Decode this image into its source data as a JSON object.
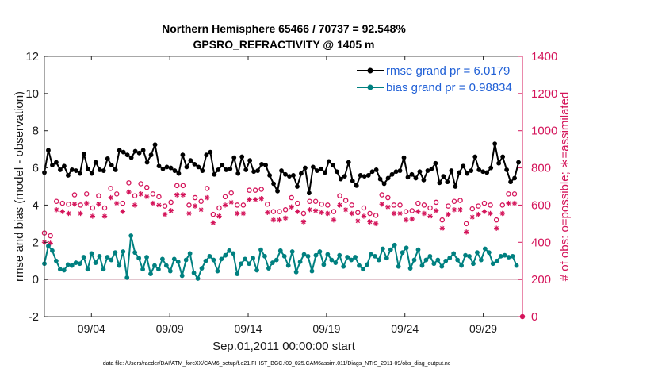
{
  "chart_data": {
    "type": "line",
    "title_line1": "Northern Hemisphere 65466 / 70737 = 92.548%",
    "title_line2": "GPSRO_REFRACTIVITY @ 1405 m",
    "ylabel_left": "rmse and bias (model - observation)",
    "ylabel_right": "# of obs: o=possible; ∗=assimilated",
    "xlabel": "Sep.01,2011 00:00:00 start",
    "footer": "data file: /Users/raeder/DAI/ATM_forcXX/CAM6_setup/f.e21.FHIST_BGC.f09_025.CAM6assim.011/Diags_NTrS_2011-09/obs_diag_output.nc",
    "x_range": [
      1.0,
      31.5
    ],
    "ylim_left": [
      -2,
      12
    ],
    "ylim_right": [
      0,
      1400
    ],
    "yticks_left": [
      "-2",
      "0",
      "2",
      "4",
      "6",
      "8",
      "10",
      "12"
    ],
    "yticks_right": [
      "0",
      "200",
      "400",
      "600",
      "800",
      "1000",
      "1200",
      "1400"
    ],
    "xticks": [
      {
        "day": 4,
        "label": "09/04"
      },
      {
        "day": 9,
        "label": "09/09"
      },
      {
        "day": 14,
        "label": "09/14"
      },
      {
        "day": 19,
        "label": "09/19"
      },
      {
        "day": 24,
        "label": "09/24"
      },
      {
        "day": 29,
        "label": "09/29"
      }
    ],
    "legend": [
      {
        "name": "rmse grand pr = 6.0179",
        "color": "#000000"
      },
      {
        "name": "bias grand pr = 0.98834",
        "color": "#008080"
      }
    ],
    "series": [
      {
        "name": "rmse",
        "axis": "left",
        "color": "#000000",
        "values": [
          5.75,
          7.1,
          6.95,
          6.5,
          6.15,
          6.7,
          6.3,
          5.8,
          5.9,
          5.85,
          6.1,
          6.25,
          5.6,
          6.05,
          5.9,
          6.3,
          5.85,
          5.75,
          5.7,
          6.1,
          6.75,
          6.0,
          5.95,
          5.85,
          5.7,
          6.1,
          6.3,
          5.75,
          5.9,
          5.8,
          5.85,
          5.7,
          6.5,
          6.05,
          6.15,
          6.25,
          5.9,
          6.4,
          6.95,
          6.1,
          6.85,
          7.0,
          6.7,
          6.95,
          6.55,
          6.4,
          6.9,
          6.5,
          6.8,
          6.2,
          6.95,
          6.75,
          6.3,
          6.85,
          6.7,
          7.4,
          7.25,
          6.05,
          6.1,
          6.55,
          5.95,
          5.4,
          6.05,
          5.95,
          6.0,
          6.1,
          5.85,
          5.9,
          5.7,
          6.2,
          6.7,
          5.8,
          6.05,
          6.15,
          6.4,
          5.6,
          6.2,
          6.55,
          6.05,
          6.6,
          5.85,
          5.5,
          6.7,
          6.4,
          6.85,
          6.2,
          5.65,
          6.05,
          5.9,
          6.3,
          6.15,
          5.8,
          5.9,
          6.4,
          5.95,
          5.75,
          6.55,
          6.15,
          5.7,
          5.85,
          6.6,
          6.1,
          5.9,
          6.2,
          6.4,
          5.95,
          5.8,
          6.3,
          5.85,
          5.7,
          6.2,
          6.5,
          6.15,
          6.2,
          5.6,
          5.3,
          5.15,
          5.55,
          4.75,
          5.6,
          5.85,
          4.5,
          5.65,
          6.0,
          5.55,
          5.85,
          5.6,
          5.45,
          5.0,
          5.8,
          5.7,
          5.95,
          6.0,
          5.6,
          4.65,
          5.8,
          6.05,
          6.1,
          5.85,
          5.7,
          5.95,
          5.5,
          5.75,
          6.2,
          6.35,
          5.75,
          6.15,
          6.05,
          5.8,
          5.7,
          5.4,
          5.75,
          5.55,
          6.05,
          6.3,
          5.85,
          5.3,
          5.4,
          5.05,
          5.8,
          5.6,
          5.75,
          5.55,
          5.25,
          5.6,
          5.5,
          5.8,
          5.55,
          5.9,
          6.1,
          5.4,
          5.6,
          5.15,
          5.8,
          5.45,
          5.8,
          5.65,
          6.1,
          5.8,
          6.05,
          5.85,
          6.25,
          6.55,
          6.05,
          5.5,
          6.05,
          5.65,
          5.15,
          5.45,
          5.75,
          5.8,
          5.95,
          5.35,
          5.3,
          5.85,
          6.2,
          5.95,
          5.7,
          6.25,
          5.6,
          5.2,
          5.85,
          5.55,
          5.4,
          5.25,
          5.55,
          5.85,
          5.2,
          5.0,
          5.6,
          5.75,
          5.4,
          6.1,
          5.35,
          5.7,
          5.95,
          5.85,
          5.6,
          6.6,
          6.0,
          5.9,
          5.3,
          5.8,
          5.55,
          5.75,
          6.2,
          6.0,
          5.8,
          7.3,
          6.05,
          6.25,
          6.35,
          6.6,
          5.75,
          5.9,
          5.1,
          5.25,
          5.6,
          5.45,
          5.6,
          6.3
        ]
      },
      {
        "name": "bias",
        "axis": "left",
        "color": "#008080",
        "values": [
          0.85,
          2.4,
          1.8,
          0.8,
          1.55,
          0.6,
          1.0,
          0.95,
          0.55,
          1.35,
          0.5,
          0.4,
          0.8,
          1.2,
          0.75,
          0.45,
          0.9,
          1.15,
          0.85,
          0.35,
          1.2,
          0.85,
          0.55,
          0.95,
          1.4,
          0.75,
          0.9,
          0.3,
          1.25,
          1.0,
          0.55,
          0.85,
          1.2,
          1.55,
          1.05,
          0.7,
          1.45,
          1.35,
          0.75,
          1.2,
          1.5,
          0.8,
          0.1,
          0.95,
          2.35,
          1.4,
          1.45,
          0.6,
          1.15,
          1.5,
          0.55,
          1.7,
          1.2,
          0.75,
          0.3,
          1.25,
          0.75,
          1.45,
          0.55,
          0.85,
          1.1,
          1.6,
          0.75,
          0.05,
          0.45,
          0.9,
          1.1,
          0.4,
          0.95,
          1.35,
          0.2,
          -0.1,
          1.05,
          0.6,
          1.4,
          0.95,
          0.35,
          0.8,
          0.05,
          1.15,
          0.6,
          1.55,
          1.0,
          0.75,
          1.25,
          0.35,
          1.05,
          1.55,
          0.45,
          0.95,
          1.1,
          0.35,
          1.3,
          0.75,
          1.55,
          0.85,
          1.4,
          0.9,
          0.3,
          1.05,
          0.85,
          0.45,
          1.1,
          0.8,
          0.85,
          0.95,
          1.15,
          0.65,
          0.5,
          1.0,
          1.6,
          0.4,
          1.25,
          0.85,
          0.6,
          1.3,
          0.9,
          0.5,
          1.05,
          2.05,
          1.55,
          0.35,
          1.25,
          1.7,
          0.75,
          0.6,
          1.5,
          0.85,
          0.4,
          1.4,
          0.95,
          0.45,
          1.35,
          0.7,
          1.25,
          1.05,
          0.45,
          1.1,
          1.3,
          0.5,
          1.5,
          1.0,
          0.8,
          0.6,
          1.35,
          0.7,
          1.05,
          1.5,
          0.9,
          0.6,
          1.3,
          1.0,
          0.7,
          1.55,
          1.2,
          0.55,
          1.05,
          0.75,
          1.2,
          1.0,
          0.75,
          1.3,
          0.55,
          1.05,
          0.8,
          0.65,
          1.35,
          0.9,
          1.25,
          0.45,
          1.05,
          0.75,
          1.65,
          1.35,
          1.15,
          2.05,
          1.6,
          0.6,
          1.85,
          1.2,
          0.7,
          1.9,
          1.45,
          0.55,
          1.7,
          1.15,
          0.6,
          1.35,
          1.05,
          0.45,
          1.6,
          1.2,
          0.75,
          1.5,
          1.05,
          0.7,
          1.25,
          0.6,
          0.85,
          1.2,
          1.05,
          1.25,
          0.7,
          1.35,
          1.0,
          0.85,
          1.15,
          0.75,
          1.4,
          1.1,
          1.05,
          1.25,
          0.75,
          1.0,
          1.3,
          1.05,
          1.25,
          1.5,
          0.85,
          1.15,
          1.45,
          0.95,
          1.05,
          1.3,
          1.65,
          0.95,
          1.45,
          1.2,
          0.85,
          1.25,
          1.0,
          0.5,
          1.25,
          1.35,
          1.3,
          1.6,
          1.2,
          0.8,
          1.25,
          1.05,
          0.75,
          1.3
        ]
      },
      {
        "name": "possible obs",
        "axis": "right",
        "color": "#d4145a",
        "values": [
          450,
          540,
          470,
          435,
          505,
          420,
          620,
          660,
          690,
          610,
          615,
          640,
          605,
          590,
          625,
          655,
          585,
          575,
          600,
          630,
          720,
          660,
          600,
          625,
          585,
          560,
          600,
          650,
          560,
          580,
          585,
          720,
          660,
          690,
          610,
          645,
          660,
          680,
          700,
          610,
          645,
          700,
          720,
          665,
          685,
          650,
          625,
          660,
          715,
          640,
          685,
          695,
          650,
          670,
          660,
          700,
          680,
          645,
          670,
          690,
          595,
          700,
          630,
          615,
          655,
          700,
          705,
          655,
          695,
          705,
          715,
          690,
          600,
          690,
          720,
          640,
          705,
          695,
          620,
          670,
          640,
          690,
          665,
          585,
          550,
          570,
          610,
          585,
          600,
          655,
          645,
          565,
          590,
          665,
          710,
          575,
          600,
          620,
          655,
          600,
          560,
          640,
          680,
          605,
          660,
          680,
          565,
          610,
          685,
          655,
          570,
          605,
          545,
          590,
          565,
          610,
          650,
          565,
          580,
          615,
          575,
          595,
          610,
          640,
          580,
          595,
          610,
          640,
          610,
          555,
          605,
          615,
          620,
          545,
          605,
          620,
          550,
          565,
          605,
          610,
          640,
          600,
          545,
          600,
          565,
          560,
          610,
          650,
          560,
          605,
          625,
          570,
          600,
          600,
          575,
          505,
          560,
          545,
          615,
          585,
          560,
          610,
          555,
          600,
          635,
          545,
          510,
          580,
          655,
          560,
          610,
          640,
          600,
          545,
          600,
          580,
          540,
          600,
          540,
          495,
          565,
          600,
          595,
          570,
          520,
          565,
          610,
          615,
          510,
          600,
          625,
          580,
          585,
          505,
          580,
          615,
          650,
          595,
          520,
          600,
          625,
          595,
          540,
          605,
          620,
          565,
          560,
          625,
          595,
          535,
          500,
          510,
          550,
          580,
          620,
          600,
          595,
          570,
          535,
          610,
          575,
          545,
          600,
          640,
          605,
          520,
          605,
          610,
          600,
          550,
          630,
          660,
          700,
          595,
          660,
          650,
          620
        ]
      },
      {
        "name": "assimilated obs",
        "axis": "right",
        "color": "#d4145a",
        "values": [
          400,
          495,
          420,
          395,
          460,
          375,
          575,
          605,
          640,
          565,
          570,
          590,
          555,
          540,
          580,
          605,
          540,
          530,
          555,
          585,
          670,
          610,
          555,
          575,
          540,
          515,
          555,
          605,
          510,
          535,
          540,
          670,
          610,
          640,
          565,
          595,
          610,
          630,
          650,
          565,
          595,
          650,
          670,
          615,
          635,
          600,
          580,
          610,
          660,
          595,
          635,
          645,
          600,
          620,
          610,
          650,
          630,
          600,
          620,
          640,
          550,
          650,
          585,
          570,
          605,
          650,
          655,
          605,
          645,
          655,
          665,
          640,
          555,
          640,
          670,
          595,
          655,
          645,
          575,
          620,
          595,
          640,
          615,
          540,
          505,
          525,
          560,
          540,
          555,
          605,
          600,
          520,
          545,
          615,
          660,
          530,
          555,
          575,
          605,
          555,
          515,
          595,
          630,
          560,
          610,
          630,
          520,
          565,
          635,
          605,
          525,
          560,
          500,
          545,
          520,
          560,
          600,
          520,
          535,
          570,
          530,
          550,
          565,
          590,
          535,
          550,
          565,
          590,
          565,
          510,
          560,
          570,
          575,
          500,
          560,
          570,
          505,
          520,
          560,
          565,
          590,
          555,
          500,
          555,
          520,
          515,
          565,
          600,
          515,
          560,
          575,
          525,
          555,
          555,
          530,
          460,
          515,
          500,
          570,
          540,
          515,
          565,
          510,
          555,
          590,
          500,
          465,
          535,
          605,
          515,
          565,
          590,
          555,
          500,
          555,
          535,
          495,
          555,
          495,
          450,
          520,
          555,
          550,
          525,
          475,
          520,
          565,
          570,
          465,
          555,
          575,
          535,
          540,
          460,
          535,
          570,
          600,
          550,
          475,
          555,
          575,
          550,
          495,
          560,
          575,
          520,
          515,
          575,
          550,
          490,
          455,
          465,
          505,
          535,
          575,
          555,
          550,
          525,
          490,
          565,
          530,
          500,
          555,
          590,
          560,
          475,
          560,
          565,
          555,
          505,
          585,
          610,
          650,
          550,
          610,
          600,
          575
        ]
      }
    ]
  }
}
